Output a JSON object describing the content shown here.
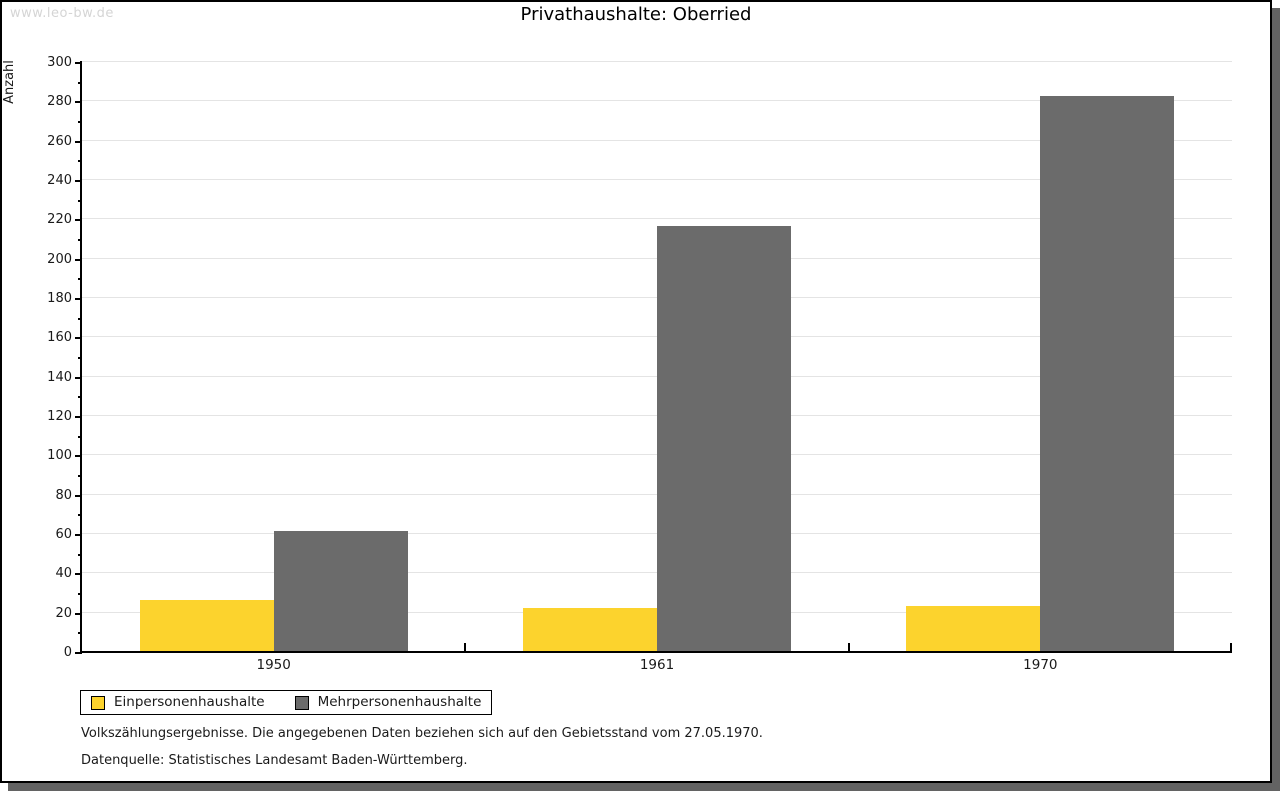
{
  "watermark": "www.leo-bw.de",
  "title": "Privathaushalte: Oberried",
  "chart_data": {
    "type": "bar",
    "title": "Privathaushalte: Oberried",
    "ylabel": "Anzahl",
    "xlabel": "",
    "ylim": [
      0,
      300
    ],
    "ytick_step": 20,
    "ytick_minor_step": 10,
    "grid": true,
    "legend_position": "bottom-left",
    "categories": [
      "1950",
      "1961",
      "1970"
    ],
    "series": [
      {
        "name": "Einpersonenhaushalte",
        "color": "#FCD32D",
        "values": [
          26,
          22,
          23
        ]
      },
      {
        "name": "Mehrpersonenhaushalte",
        "color": "#6B6B6B",
        "values": [
          61,
          216,
          282
        ]
      }
    ]
  },
  "footer": {
    "line1": "Volkszählungsergebnisse. Die angegebenen Daten beziehen sich auf den Gebietsstand vom 27.05.1970.",
    "line2": "Datenquelle: Statistisches Landesamt Baden-Württemberg."
  },
  "colors": {
    "frame-border": "#000000",
    "shadow": "#636363",
    "grid": "#e4e4e4",
    "axis": "#000000",
    "watermark": "#d5d5d5",
    "text": "#1a1a1a"
  }
}
